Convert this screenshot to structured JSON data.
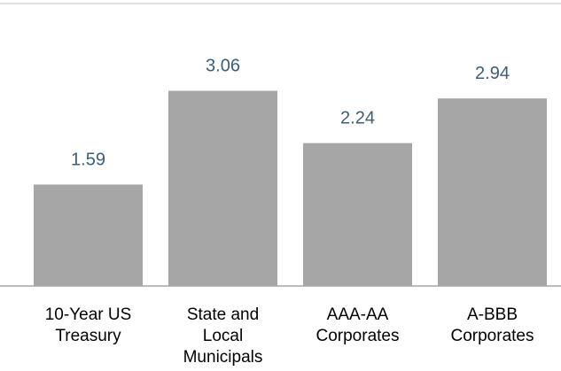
{
  "chart_data": {
    "type": "bar",
    "categories": [
      [
        "10-Year US",
        "Treasury"
      ],
      [
        "State and",
        "Local",
        "Municipals"
      ],
      [
        "AAA-AA",
        "Corporates"
      ],
      [
        "A-BBB",
        "Corporates"
      ]
    ],
    "values": [
      1.59,
      3.06,
      2.24,
      2.94
    ],
    "data_labels": [
      "1.59",
      "3.06",
      "2.24",
      "2.94"
    ],
    "title": "",
    "xlabel": "",
    "ylabel": "",
    "ylim": [
      0,
      4.4
    ],
    "grid": false,
    "legend": "none",
    "colors": {
      "bar": "#a6a6a6",
      "value_text": "#3b5e78",
      "axis": "#a6a6a6",
      "label_text": "#000000"
    }
  }
}
